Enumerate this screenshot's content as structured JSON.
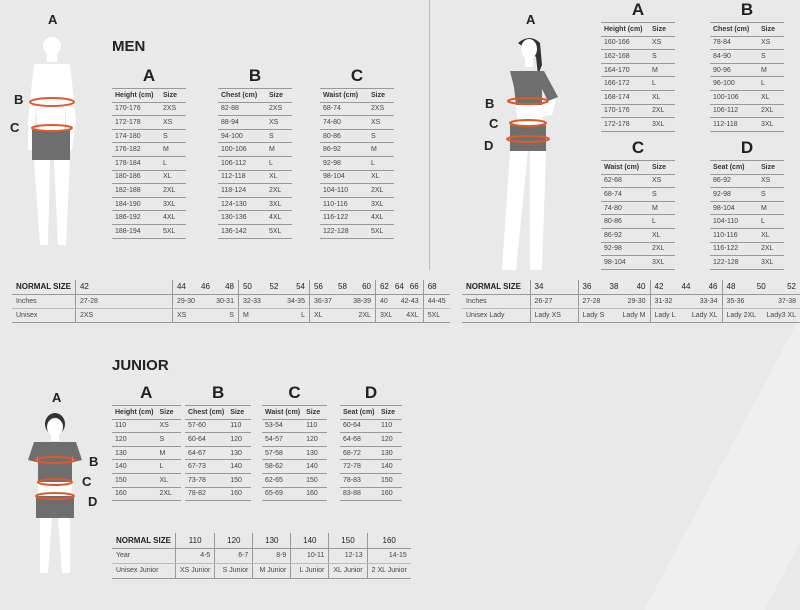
{
  "men": {
    "title": "MEN",
    "figure_letters": [
      "A",
      "B",
      "C"
    ],
    "tables": [
      {
        "letter": "A",
        "headers": [
          "Height (cm)",
          "Size"
        ],
        "rows": [
          [
            "170-176",
            "2XS"
          ],
          [
            "172-178",
            "XS"
          ],
          [
            "174-180",
            "S"
          ],
          [
            "176-182",
            "M"
          ],
          [
            "178-184",
            "L"
          ],
          [
            "180-186",
            "XL"
          ],
          [
            "182-188",
            "2XL"
          ],
          [
            "184-190",
            "3XL"
          ],
          [
            "186-192",
            "4XL"
          ],
          [
            "188-194",
            "5XL"
          ]
        ]
      },
      {
        "letter": "B",
        "headers": [
          "Chest (cm)",
          "Size"
        ],
        "rows": [
          [
            "82-88",
            "2XS"
          ],
          [
            "88-94",
            "XS"
          ],
          [
            "94-100",
            "S"
          ],
          [
            "100-106",
            "M"
          ],
          [
            "106-112",
            "L"
          ],
          [
            "112-118",
            "XL"
          ],
          [
            "118-124",
            "2XL"
          ],
          [
            "124-130",
            "3XL"
          ],
          [
            "130-136",
            "4XL"
          ],
          [
            "136-142",
            "5XL"
          ]
        ]
      },
      {
        "letter": "C",
        "headers": [
          "Waist (cm)",
          "Size"
        ],
        "rows": [
          [
            "68-74",
            "2XS"
          ],
          [
            "74-80",
            "XS"
          ],
          [
            "80-86",
            "S"
          ],
          [
            "86-92",
            "M"
          ],
          [
            "92-98",
            "L"
          ],
          [
            "98-104",
            "XL"
          ],
          [
            "104-110",
            "2XL"
          ],
          [
            "110-116",
            "3XL"
          ],
          [
            "116-122",
            "4XL"
          ],
          [
            "122-128",
            "5XL"
          ]
        ]
      }
    ],
    "normal": {
      "labels": [
        "NORMAL SIZE",
        "Inches",
        "Unisex"
      ],
      "groups": [
        {
          "sizes": [
            "42"
          ],
          "inches": [
            "27-28"
          ],
          "unisex": [
            "2XS"
          ]
        },
        {
          "sizes": [
            "44",
            "46",
            "48"
          ],
          "inches": [
            "29-30",
            "30-31"
          ],
          "unisex": [
            "XS",
            "S"
          ]
        },
        {
          "sizes": [
            "50",
            "52",
            "54"
          ],
          "inches": [
            "32-33",
            "34-35"
          ],
          "unisex": [
            "M",
            "L"
          ]
        },
        {
          "sizes": [
            "56",
            "58",
            "60"
          ],
          "inches": [
            "36-37",
            "38-39"
          ],
          "unisex": [
            "XL",
            "2XL"
          ]
        },
        {
          "sizes": [
            "62",
            "64",
            "66"
          ],
          "inches": [
            "40",
            "42-43"
          ],
          "unisex": [
            "3XL",
            "4XL"
          ]
        },
        {
          "sizes": [
            "68"
          ],
          "inches": [
            "44-45"
          ],
          "unisex": [
            "5XL"
          ]
        }
      ]
    }
  },
  "women": {
    "figure_letters": [
      "A",
      "B",
      "C",
      "D"
    ],
    "tables": [
      {
        "letter": "A",
        "headers": [
          "Height (cm)",
          "Size"
        ],
        "rows": [
          [
            "160-166",
            "XS"
          ],
          [
            "162-168",
            "S"
          ],
          [
            "164-170",
            "M"
          ],
          [
            "166-172",
            "L"
          ],
          [
            "168-174",
            "XL"
          ],
          [
            "170-176",
            "2XL"
          ],
          [
            "172-178",
            "3XL"
          ]
        ]
      },
      {
        "letter": "B",
        "headers": [
          "Chest (cm)",
          "Size"
        ],
        "rows": [
          [
            "78-84",
            "XS"
          ],
          [
            "84-90",
            "S"
          ],
          [
            "90-96",
            "M"
          ],
          [
            "96-100",
            "L"
          ],
          [
            "100-106",
            "XL"
          ],
          [
            "106-112",
            "2XL"
          ],
          [
            "112-118",
            "3XL"
          ]
        ]
      },
      {
        "letter": "C",
        "headers": [
          "Waist (cm)",
          "Size"
        ],
        "rows": [
          [
            "62-68",
            "XS"
          ],
          [
            "68-74",
            "S"
          ],
          [
            "74-80",
            "M"
          ],
          [
            "80-86",
            "L"
          ],
          [
            "86-92",
            "XL"
          ],
          [
            "92-98",
            "2XL"
          ],
          [
            "98-104",
            "3XL"
          ]
        ]
      },
      {
        "letter": "D",
        "headers": [
          "Seat (cm)",
          "Size"
        ],
        "rows": [
          [
            "86-92",
            "XS"
          ],
          [
            "92-98",
            "S"
          ],
          [
            "98-104",
            "M"
          ],
          [
            "104-110",
            "L"
          ],
          [
            "110-116",
            "XL"
          ],
          [
            "116-122",
            "2XL"
          ],
          [
            "122-128",
            "3XL"
          ]
        ]
      }
    ],
    "normal": {
      "labels": [
        "NORMAL SIZE",
        "Inches",
        "Unisex Lady"
      ],
      "groups": [
        {
          "sizes": [
            "34"
          ],
          "inches": [
            "26-27"
          ],
          "unisex": [
            "Lady XS"
          ]
        },
        {
          "sizes": [
            "36",
            "38",
            "40"
          ],
          "inches": [
            "27-28",
            "29-30"
          ],
          "unisex": [
            "Lady S",
            "Lady M"
          ]
        },
        {
          "sizes": [
            "42",
            "44",
            "46"
          ],
          "inches": [
            "31-32",
            "33-34"
          ],
          "unisex": [
            "Lady L",
            "Lady XL"
          ]
        },
        {
          "sizes": [
            "48",
            "50",
            "52"
          ],
          "inches": [
            "35-36",
            "37-38"
          ],
          "unisex": [
            "Lady 2XL",
            "Lady3 XL"
          ]
        }
      ]
    }
  },
  "junior": {
    "title": "JUNIOR",
    "figure_letters": [
      "A",
      "B",
      "C",
      "D"
    ],
    "tables": [
      {
        "letter": "A",
        "headers": [
          "Height (cm)",
          "Size"
        ],
        "rows": [
          [
            "110",
            "XS"
          ],
          [
            "120",
            "S"
          ],
          [
            "130",
            "M"
          ],
          [
            "140",
            "L"
          ],
          [
            "150",
            "XL"
          ],
          [
            "160",
            "2XL"
          ]
        ]
      },
      {
        "letter": "B",
        "headers": [
          "Chest (cm)",
          "Size"
        ],
        "rows": [
          [
            "57-60",
            "110"
          ],
          [
            "60-64",
            "120"
          ],
          [
            "64-67",
            "130"
          ],
          [
            "67-73",
            "140"
          ],
          [
            "73-78",
            "150"
          ],
          [
            "78-82",
            "160"
          ]
        ]
      },
      {
        "letter": "C",
        "headers": [
          "Waist (cm)",
          "Size"
        ],
        "rows": [
          [
            "53-54",
            "110"
          ],
          [
            "54-57",
            "120"
          ],
          [
            "57-58",
            "130"
          ],
          [
            "58-62",
            "140"
          ],
          [
            "62-65",
            "150"
          ],
          [
            "65-69",
            "160"
          ]
        ]
      },
      {
        "letter": "D",
        "headers": [
          "Seat (cm)",
          "Size"
        ],
        "rows": [
          [
            "60-64",
            "110"
          ],
          [
            "64-68",
            "120"
          ],
          [
            "68-72",
            "130"
          ],
          [
            "72-78",
            "140"
          ],
          [
            "78-83",
            "150"
          ],
          [
            "83-88",
            "160"
          ]
        ]
      }
    ],
    "normal": {
      "labels": [
        "NORMAL SIZE",
        "Year",
        "Unisex Junior"
      ],
      "sizes": [
        "110",
        "120",
        "130",
        "140",
        "150",
        "160"
      ],
      "years": [
        "4-5",
        "6-7",
        "8-9",
        "10-11",
        "12-13",
        "14-15"
      ],
      "unisex": [
        "XS Junior",
        "S Junior",
        "M Junior",
        "L Junior",
        "XL Junior",
        "2 XL Junior"
      ]
    }
  },
  "colors": {
    "background": "#e9e9e9",
    "measure_line": "#e0592a",
    "shorts": "#6e6e6e"
  }
}
